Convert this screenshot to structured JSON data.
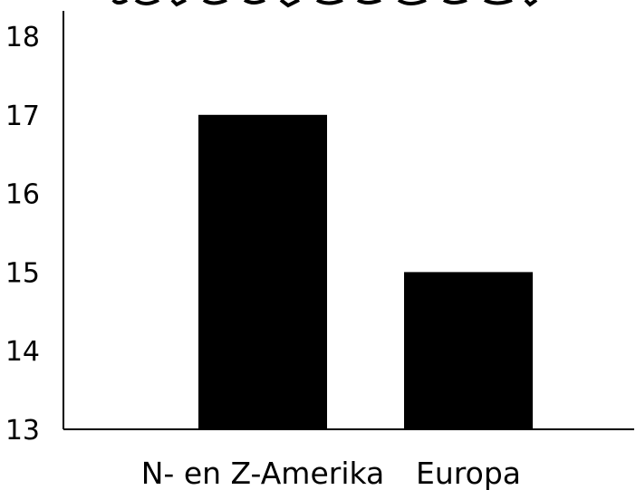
{
  "chart_data": {
    "type": "bar",
    "title": "",
    "xlabel": "",
    "ylabel": "",
    "categories": [
      "N- en Z-Amerika",
      "Europa"
    ],
    "values": [
      17,
      15
    ],
    "ylim": [
      13,
      18
    ],
    "yticks": [
      "18",
      "17",
      "16",
      "15",
      "14",
      "13"
    ],
    "grid": false,
    "legend": "none",
    "bar_color": "#000000",
    "axis_color": "#000000"
  }
}
